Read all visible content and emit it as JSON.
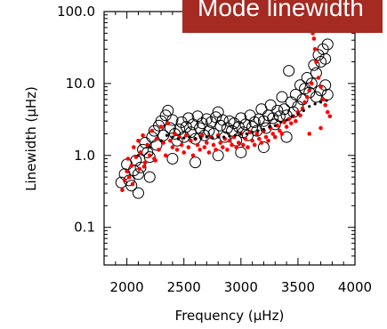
{
  "chart_data": {
    "type": "scatter",
    "title": "Mode linewidth",
    "xlabel": "Frequency (μHz)",
    "ylabel": "Linewidth (μHz)",
    "xlim": [
      1800,
      4000
    ],
    "ylim": [
      0.03,
      100
    ],
    "y_scale": "log",
    "grid": false,
    "x_ticks": [
      2000,
      2500,
      3000,
      3500,
      4000
    ],
    "x_tick_labels": [
      "2000",
      "2500",
      "3000",
      "3500",
      "4000"
    ],
    "y_ticks": [
      0.1,
      1,
      10,
      100
    ],
    "y_tick_labels": [
      "0.1",
      "1.0",
      "10.0",
      "100.0"
    ],
    "colors": {
      "banner": "#a52a22",
      "open_circles": "#000000",
      "red_points": "#ff0000",
      "black_dots": "#000000"
    },
    "series": [
      {
        "marker": "open-circle",
        "points": [
          [
            1950,
            0.42
          ],
          [
            1980,
            0.55
          ],
          [
            2000,
            0.75
          ],
          [
            2020,
            0.45
          ],
          [
            2040,
            0.38
          ],
          [
            2060,
            0.62
          ],
          [
            2080,
            0.85
          ],
          [
            2100,
            0.55
          ],
          [
            2120,
            0.68
          ],
          [
            2140,
            1.2
          ],
          [
            2160,
            1.5
          ],
          [
            2180,
            1.1
          ],
          [
            2200,
            0.95
          ],
          [
            2220,
            1.8
          ],
          [
            2240,
            2.2
          ],
          [
            2260,
            1.4
          ],
          [
            2280,
            2.6
          ],
          [
            2300,
            3.0
          ],
          [
            2320,
            1.9
          ],
          [
            2340,
            3.6
          ],
          [
            2360,
            4.2
          ],
          [
            2380,
            2.4
          ],
          [
            2400,
            3.1
          ],
          [
            2420,
            2.0
          ],
          [
            2440,
            1.6
          ],
          [
            2460,
            2.3
          ],
          [
            2480,
            2.9
          ],
          [
            2500,
            1.8
          ],
          [
            2520,
            2.5
          ],
          [
            2540,
            3.3
          ],
          [
            2560,
            2.1
          ],
          [
            2580,
            2.7
          ],
          [
            2600,
            1.7
          ],
          [
            2620,
            3.5
          ],
          [
            2640,
            2.4
          ],
          [
            2660,
            2.8
          ],
          [
            2680,
            1.9
          ],
          [
            2700,
            3.2
          ],
          [
            2720,
            2.2
          ],
          [
            2740,
            2.9
          ],
          [
            2760,
            2.0
          ],
          [
            2780,
            3.4
          ],
          [
            2800,
            4.0
          ],
          [
            2820,
            2.6
          ],
          [
            2840,
            3.1
          ],
          [
            2860,
            1.8
          ],
          [
            2880,
            2.4
          ],
          [
            2900,
            3.0
          ],
          [
            2920,
            2.2
          ],
          [
            2940,
            2.8
          ],
          [
            2960,
            1.6
          ],
          [
            2980,
            2.5
          ],
          [
            3000,
            3.3
          ],
          [
            3020,
            2.1
          ],
          [
            3040,
            2.7
          ],
          [
            3060,
            1.9
          ],
          [
            3080,
            3.6
          ],
          [
            3100,
            2.5
          ],
          [
            3120,
            2.9
          ],
          [
            3140,
            2.2
          ],
          [
            3160,
            3.2
          ],
          [
            3180,
            4.4
          ],
          [
            3200,
            3.0
          ],
          [
            3220,
            2.4
          ],
          [
            3240,
            3.6
          ],
          [
            3260,
            5.0
          ],
          [
            3280,
            3.3
          ],
          [
            3300,
            2.7
          ],
          [
            3320,
            4.2
          ],
          [
            3340,
            3.5
          ],
          [
            3360,
            6.5
          ],
          [
            3380,
            4.4
          ],
          [
            3400,
            3.6
          ],
          [
            3420,
            15.0
          ],
          [
            3440,
            5.5
          ],
          [
            3460,
            4.0
          ],
          [
            3480,
            7.0
          ],
          [
            3500,
            4.8
          ],
          [
            3520,
            9.5
          ],
          [
            3540,
            6.0
          ],
          [
            3560,
            8.5
          ],
          [
            3580,
            12.0
          ],
          [
            3600,
            7.5
          ],
          [
            3620,
            10.0
          ],
          [
            3640,
            18.0
          ],
          [
            3660,
            14.0
          ],
          [
            3680,
            25.0
          ],
          [
            3700,
            20.0
          ],
          [
            3720,
            30.0
          ],
          [
            3740,
            22.0
          ],
          [
            3760,
            35.0
          ],
          [
            3660,
            6.5
          ],
          [
            3700,
            8.0
          ],
          [
            3740,
            9.5
          ],
          [
            3760,
            7.0
          ],
          [
            2400,
            0.9
          ],
          [
            2600,
            0.8
          ],
          [
            2800,
            1.0
          ],
          [
            3000,
            1.1
          ],
          [
            3200,
            1.3
          ],
          [
            3400,
            1.8
          ],
          [
            2100,
            0.3
          ],
          [
            2200,
            0.5
          ]
        ]
      },
      {
        "marker": "red-dot",
        "points": [
          [
            1960,
            0.33
          ],
          [
            1980,
            0.45
          ],
          [
            2000,
            0.6
          ],
          [
            2010,
            0.9
          ],
          [
            2020,
            0.5
          ],
          [
            2040,
            0.72
          ],
          [
            2060,
            1.3
          ],
          [
            2080,
            0.95
          ],
          [
            2100,
            1.6
          ],
          [
            2110,
            0.65
          ],
          [
            2120,
            1.1
          ],
          [
            2140,
            1.9
          ],
          [
            2160,
            0.8
          ],
          [
            2180,
            1.4
          ],
          [
            2200,
            1.0
          ],
          [
            2220,
            2.2
          ],
          [
            2240,
            0.9
          ],
          [
            2260,
            1.7
          ],
          [
            2280,
            1.2
          ],
          [
            2300,
            2.5
          ],
          [
            2320,
            1.5
          ],
          [
            2340,
            1.0
          ],
          [
            2360,
            2.8
          ],
          [
            2380,
            1.6
          ],
          [
            2400,
            1.3
          ],
          [
            2420,
            2.0
          ],
          [
            2440,
            1.2
          ],
          [
            2460,
            1.8
          ],
          [
            2480,
            1.4
          ],
          [
            2500,
            1.1
          ],
          [
            2520,
            1.9
          ],
          [
            2540,
            1.3
          ],
          [
            2560,
            1.6
          ],
          [
            2580,
            1.0
          ],
          [
            2600,
            1.7
          ],
          [
            2620,
            1.4
          ],
          [
            2640,
            1.2
          ],
          [
            2660,
            1.9
          ],
          [
            2680,
            1.3
          ],
          [
            2700,
            1.5
          ],
          [
            2720,
            1.1
          ],
          [
            2740,
            1.8
          ],
          [
            2760,
            1.4
          ],
          [
            2780,
            1.2
          ],
          [
            2800,
            1.9
          ],
          [
            2820,
            1.5
          ],
          [
            2840,
            1.3
          ],
          [
            2860,
            1.7
          ],
          [
            2880,
            1.2
          ],
          [
            2900,
            1.6
          ],
          [
            2920,
            1.4
          ],
          [
            2940,
            1.8
          ],
          [
            2960,
            1.3
          ],
          [
            2980,
            1.5
          ],
          [
            3000,
            2.0
          ],
          [
            3020,
            1.4
          ],
          [
            3040,
            1.7
          ],
          [
            3060,
            1.3
          ],
          [
            3080,
            2.1
          ],
          [
            3100,
            1.6
          ],
          [
            3120,
            1.4
          ],
          [
            3140,
            2.0
          ],
          [
            3160,
            1.7
          ],
          [
            3180,
            1.5
          ],
          [
            3200,
            2.2
          ],
          [
            3220,
            1.8
          ],
          [
            3240,
            1.6
          ],
          [
            3260,
            2.4
          ],
          [
            3280,
            2.0
          ],
          [
            3300,
            1.8
          ],
          [
            3320,
            2.6
          ],
          [
            3340,
            2.2
          ],
          [
            3360,
            2.0
          ],
          [
            3380,
            2.9
          ],
          [
            3400,
            2.5
          ],
          [
            3420,
            3.2
          ],
          [
            3440,
            2.8
          ],
          [
            3460,
            3.5
          ],
          [
            3480,
            3.0
          ],
          [
            3500,
            4.0
          ],
          [
            3520,
            3.6
          ],
          [
            3540,
            4.5
          ],
          [
            3560,
            5.5
          ],
          [
            3580,
            6.5
          ],
          [
            3600,
            8.0
          ],
          [
            3620,
            10.0
          ],
          [
            3630,
            50.0
          ],
          [
            3640,
            42.0
          ],
          [
            3650,
            30.0
          ],
          [
            3660,
            20.0
          ],
          [
            3680,
            12.0
          ],
          [
            3700,
            9.0
          ],
          [
            3720,
            6.0
          ],
          [
            3740,
            5.0
          ],
          [
            3760,
            4.0
          ],
          [
            3780,
            3.5
          ],
          [
            3600,
            2.0
          ],
          [
            3700,
            2.4
          ],
          [
            2050,
            0.4
          ],
          [
            2150,
            0.7
          ],
          [
            2250,
            0.85
          ]
        ]
      },
      {
        "marker": "black-dot",
        "points": [
          [
            2100,
            1.0
          ],
          [
            2200,
            1.3
          ],
          [
            2300,
            1.6
          ],
          [
            2350,
            1.9
          ],
          [
            2400,
            1.8
          ],
          [
            2450,
            1.7
          ],
          [
            2500,
            1.75
          ],
          [
            2550,
            1.8
          ],
          [
            2600,
            1.7
          ],
          [
            2650,
            1.75
          ],
          [
            2700,
            1.8
          ],
          [
            2750,
            1.75
          ],
          [
            2800,
            1.8
          ],
          [
            2850,
            1.8
          ],
          [
            2900,
            1.85
          ],
          [
            2950,
            1.9
          ],
          [
            3000,
            2.0
          ],
          [
            3050,
            2.0
          ],
          [
            3100,
            2.1
          ],
          [
            3150,
            2.2
          ],
          [
            3200,
            2.3
          ],
          [
            3250,
            2.5
          ],
          [
            3300,
            2.6
          ],
          [
            3350,
            2.9
          ],
          [
            3400,
            3.1
          ],
          [
            3450,
            3.5
          ],
          [
            3500,
            3.8
          ],
          [
            3550,
            4.2
          ],
          [
            3600,
            4.8
          ],
          [
            3650,
            5.2
          ],
          [
            3700,
            5.5
          ],
          [
            3750,
            5.8
          ]
        ]
      }
    ]
  }
}
